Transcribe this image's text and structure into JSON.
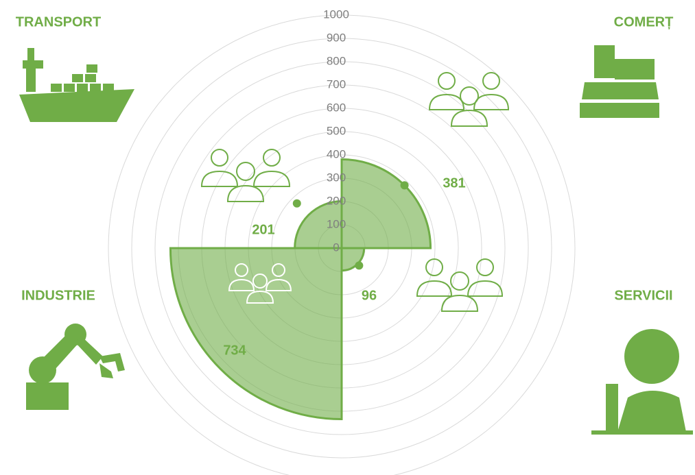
{
  "chart_data": {
    "type": "polar-area",
    "categories": [
      "COMERȚ",
      "SERVICII",
      "INDUSTRIE",
      "TRANSPORT"
    ],
    "values": [
      381,
      96,
      734,
      201
    ],
    "color": "#70ad47",
    "ylim": [
      0,
      1000
    ],
    "yticks": [
      0,
      100,
      200,
      300,
      400,
      500,
      600,
      700,
      800,
      900,
      1000
    ],
    "grid": true
  }
}
